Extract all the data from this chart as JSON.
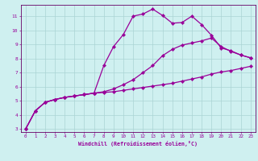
{
  "xlabel": "Windchill (Refroidissement éolien,°C)",
  "bg_color": "#cff0f0",
  "grid_color": "#aad4d4",
  "line_color": "#990099",
  "spine_color": "#660066",
  "xlim": [
    -0.5,
    23.5
  ],
  "ylim": [
    2.8,
    11.8
  ],
  "xticks": [
    0,
    1,
    2,
    3,
    4,
    5,
    6,
    7,
    8,
    9,
    10,
    11,
    12,
    13,
    14,
    15,
    16,
    17,
    18,
    19,
    20,
    21,
    22,
    23
  ],
  "yticks": [
    3,
    4,
    5,
    6,
    7,
    8,
    9,
    10,
    11
  ],
  "line1_x": [
    0,
    1,
    2,
    3,
    4,
    5,
    6,
    7,
    8,
    9,
    10,
    11,
    12,
    13,
    14,
    15,
    16,
    17,
    18,
    19,
    20,
    21,
    22,
    23
  ],
  "line1_y": [
    3.0,
    4.3,
    4.9,
    5.1,
    5.25,
    5.35,
    5.45,
    5.55,
    5.6,
    5.65,
    5.75,
    5.85,
    5.95,
    6.05,
    6.15,
    6.25,
    6.4,
    6.55,
    6.7,
    6.9,
    7.05,
    7.15,
    7.3,
    7.45
  ],
  "line2_x": [
    0,
    1,
    2,
    3,
    4,
    5,
    6,
    7,
    8,
    9,
    10,
    11,
    12,
    13,
    14,
    15,
    16,
    17,
    18,
    19,
    20,
    21,
    22,
    23
  ],
  "line2_y": [
    3.0,
    4.3,
    4.9,
    5.1,
    5.25,
    5.35,
    5.45,
    5.55,
    5.65,
    5.85,
    6.15,
    6.5,
    7.0,
    7.5,
    8.2,
    8.65,
    8.95,
    9.1,
    9.25,
    9.45,
    8.85,
    8.5,
    8.25,
    8.05
  ],
  "line3_x": [
    0,
    1,
    2,
    3,
    4,
    5,
    6,
    7,
    8,
    9,
    10,
    11,
    12,
    13,
    14,
    15,
    16,
    17,
    18,
    19,
    20,
    21,
    22,
    23
  ],
  "line3_y": [
    3.0,
    4.3,
    4.9,
    5.1,
    5.25,
    5.35,
    5.45,
    5.55,
    7.5,
    8.85,
    9.7,
    11.0,
    11.15,
    11.5,
    11.05,
    10.5,
    10.55,
    11.0,
    10.4,
    9.65,
    8.75,
    8.55,
    8.25,
    8.05
  ],
  "marker": "D",
  "markersize": 2.2,
  "linewidth": 0.9
}
